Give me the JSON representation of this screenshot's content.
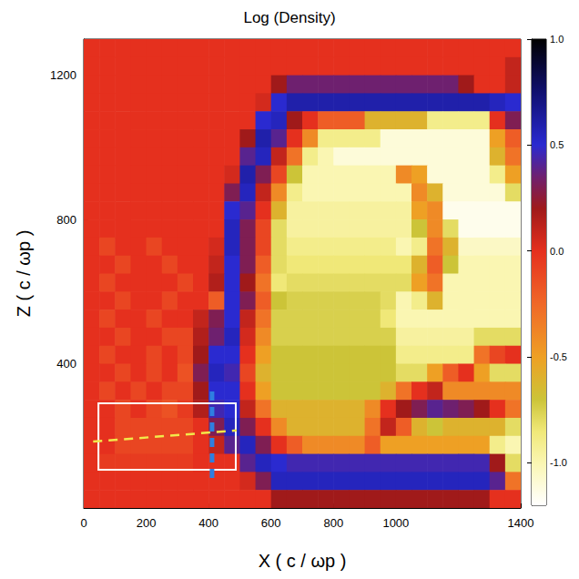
{
  "chart_data": {
    "type": "heatmap",
    "title": "Log (Density)",
    "x_label": "X ( c / ωp )",
    "y_label": "Z ( c / ωp )",
    "xlim": [
      0,
      1400
    ],
    "ylim": [
      0,
      1300
    ],
    "xticks": [
      0,
      200,
      400,
      600,
      800,
      1000,
      1400
    ],
    "yticks": [
      400,
      800,
      1200
    ],
    "x": [
      25,
      75,
      125,
      175,
      225,
      275,
      325,
      375,
      425,
      475,
      525,
      575,
      625,
      675,
      725,
      775,
      825,
      875,
      925,
      975,
      1025,
      1075,
      1125,
      1175,
      1225,
      1275,
      1325,
      1375
    ],
    "y": [
      1275,
      1225,
      1175,
      1125,
      1075,
      1025,
      975,
      925,
      875,
      825,
      775,
      725,
      675,
      625,
      575,
      525,
      475,
      425,
      375,
      325,
      275,
      225,
      175,
      125,
      75,
      25
    ],
    "values": [
      [
        0,
        0,
        0,
        0,
        0,
        0,
        0,
        0,
        0,
        0,
        0,
        0,
        0,
        0,
        0,
        0,
        0,
        0,
        0,
        0,
        0,
        0,
        0,
        0,
        0,
        0,
        0,
        0
      ],
      [
        0,
        0,
        0,
        0,
        0,
        0,
        0,
        0,
        0,
        0,
        0,
        0,
        0,
        0,
        0,
        0,
        0,
        0,
        0,
        0,
        0,
        0,
        0,
        0,
        0,
        0,
        0,
        0.1
      ],
      [
        0,
        0,
        0,
        0,
        0,
        0,
        0,
        0,
        0,
        0,
        0,
        0,
        0.2,
        0.35,
        0.35,
        0.35,
        0.35,
        0.35,
        0.35,
        0.35,
        0.35,
        0.35,
        0.35,
        0.35,
        0.2,
        0,
        0,
        0.1
      ],
      [
        0,
        0,
        0,
        0,
        0,
        0,
        0,
        0,
        0,
        0,
        0,
        0.05,
        0.5,
        0.6,
        0.6,
        0.6,
        0.6,
        0.6,
        0.6,
        0.6,
        0.6,
        0.6,
        0.6,
        0.6,
        0.6,
        0.6,
        0.55,
        0.5
      ],
      [
        0,
        0,
        0,
        0,
        0,
        0,
        0,
        0,
        0,
        0,
        0,
        0.5,
        0.55,
        0.2,
        0,
        -0.2,
        -0.2,
        -0.2,
        -0.6,
        -0.6,
        -0.6,
        -0.6,
        -0.9,
        -0.9,
        -0.9,
        -0.9,
        0,
        0.3
      ],
      [
        0,
        0,
        0,
        0,
        0,
        0,
        0,
        0,
        0,
        0,
        0.2,
        0.6,
        0.4,
        0,
        -0.4,
        -0.9,
        -0.9,
        -0.9,
        -0.9,
        -1.1,
        -1.1,
        -1.1,
        -1.1,
        -1.1,
        -1.1,
        -1.1,
        -0.5,
        -0.2
      ],
      [
        0,
        0,
        0,
        0,
        0,
        0,
        0,
        0,
        0,
        0,
        0.4,
        0.55,
        0.1,
        -0.3,
        -0.9,
        -1,
        -1.1,
        -1.1,
        -1.1,
        -1.1,
        -1.1,
        -1.1,
        -1.1,
        -1.1,
        -1.1,
        -1.1,
        -0.6,
        -0.3
      ],
      [
        0,
        0,
        0,
        0,
        0,
        0,
        0,
        0,
        0,
        0.05,
        0.6,
        0.3,
        -0.1,
        -0.7,
        -1,
        -1,
        -1,
        -1,
        -1,
        -1,
        -0.4,
        -0.5,
        -1.1,
        -1.1,
        -1.1,
        -1.1,
        -0.9,
        -0.5
      ],
      [
        0,
        0,
        0,
        0,
        0,
        0,
        0,
        0,
        0,
        0.3,
        0.55,
        0.1,
        -0.4,
        -0.9,
        -1,
        -1,
        -1,
        -1,
        -1,
        -1,
        -1,
        -0.4,
        -0.6,
        -1.1,
        -1.1,
        -1.1,
        -1.1,
        -0.8
      ],
      [
        0,
        0,
        0,
        0,
        0,
        0,
        0,
        0,
        0,
        0.5,
        0.4,
        0,
        -0.6,
        -0.95,
        -0.95,
        -0.95,
        -0.95,
        -0.95,
        -0.95,
        -0.95,
        -0.95,
        -0.5,
        -0.4,
        -1.15,
        -1.15,
        -1.15,
        -1.15,
        -1.15
      ],
      [
        0,
        0,
        0,
        0,
        0,
        0,
        0,
        0,
        0,
        0.55,
        0.3,
        -0.1,
        -0.8,
        -0.95,
        -0.95,
        -0.95,
        -0.95,
        -0.95,
        -0.95,
        -0.95,
        -0.95,
        -0.7,
        -0.4,
        -0.8,
        -1.15,
        -1.15,
        -1.15,
        -1.15
      ],
      [
        0,
        -0.1,
        0,
        0,
        -0.1,
        0,
        0,
        0,
        0.05,
        0.55,
        0.3,
        -0.1,
        -0.8,
        -0.9,
        -0.9,
        -0.9,
        -0.9,
        -0.9,
        -0.9,
        -0.9,
        -1,
        -0.9,
        -0.3,
        -0.6,
        -1.05,
        -1.05,
        -1.05,
        -1.05
      ],
      [
        0,
        0,
        -0.1,
        0,
        0,
        -0.1,
        0,
        0,
        0.1,
        0.5,
        0.3,
        -0.2,
        -0.8,
        -0.85,
        -0.85,
        -0.85,
        -0.85,
        -0.85,
        -0.85,
        -0.85,
        -0.85,
        -0.6,
        -0.2,
        -0.7,
        -1,
        -1,
        -1,
        -1
      ],
      [
        0,
        -0.1,
        0,
        0,
        0,
        0,
        -0.1,
        0,
        0.15,
        0.5,
        0.2,
        -0.3,
        -0.85,
        -0.8,
        -0.8,
        -0.8,
        -0.8,
        -0.8,
        -0.8,
        -0.8,
        -0.8,
        -0.5,
        -0.3,
        -1,
        -1,
        -1,
        -1,
        -1
      ],
      [
        0,
        0,
        -0.1,
        0,
        0,
        -0.1,
        0,
        0,
        -0.2,
        0.5,
        0.3,
        -0.2,
        -0.7,
        -0.75,
        -0.75,
        -0.75,
        -0.75,
        -0.75,
        -0.75,
        -0.8,
        -1,
        -0.9,
        -0.6,
        -1,
        -1,
        -1,
        -1,
        -1
      ],
      [
        0,
        -0.1,
        0,
        0,
        -0.1,
        0,
        0,
        0.1,
        0.3,
        0.5,
        0.1,
        -0.3,
        -0.75,
        -0.75,
        -0.75,
        -0.75,
        -0.75,
        -0.75,
        -0.75,
        -0.85,
        -1,
        -1,
        -1,
        -1,
        -1,
        -1,
        -1,
        -1
      ],
      [
        0,
        0,
        -0.1,
        0,
        0,
        -0.1,
        -0.1,
        0.15,
        0.35,
        0.55,
        0.05,
        -0.4,
        -0.75,
        -0.75,
        -0.75,
        -0.75,
        -0.75,
        -0.75,
        -0.75,
        -0.75,
        -0.95,
        -0.95,
        -0.95,
        -0.95,
        -0.95,
        -0.8,
        -0.8,
        -0.8
      ],
      [
        0,
        -0.1,
        0,
        0,
        -0.1,
        0,
        -0.1,
        0.2,
        0.5,
        0.5,
        0,
        -0.5,
        -0.7,
        -0.7,
        -0.7,
        -0.7,
        -0.7,
        -0.7,
        -0.7,
        -0.7,
        -0.9,
        -0.9,
        -0.9,
        -0.9,
        -0.9,
        -0.3,
        -0.1,
        0
      ],
      [
        0,
        0,
        -0.1,
        0,
        -0.1,
        0,
        -0.15,
        0.3,
        0.55,
        0.45,
        -0.1,
        -0.6,
        -0.7,
        -0.7,
        -0.7,
        -0.7,
        -0.7,
        -0.7,
        -0.7,
        -0.7,
        -0.8,
        -0.8,
        -0.5,
        -0.2,
        0,
        -0.5,
        -0.8,
        -0.8
      ],
      [
        0,
        -0.1,
        0,
        -0.1,
        0,
        -0.1,
        -0.1,
        0.2,
        0.5,
        0.5,
        0,
        -0.5,
        -0.7,
        -0.7,
        -0.7,
        -0.7,
        -0.7,
        -0.7,
        -0.7,
        -0.6,
        -0.3,
        0,
        0.1,
        -0.4,
        -0.4,
        -0.4,
        -0.4,
        -0.4
      ],
      [
        0,
        0,
        -0.1,
        0,
        -0.1,
        -0.15,
        -0.05,
        0.15,
        0.45,
        0.5,
        0.1,
        -0.3,
        -0.6,
        -0.6,
        -0.6,
        -0.6,
        -0.6,
        -0.6,
        -0.4,
        0,
        0.2,
        0.3,
        0.4,
        0.35,
        0.3,
        0.2,
        0,
        -0.3
      ],
      [
        0,
        0,
        -0.1,
        -0.1,
        -0.1,
        -0.1,
        -0.1,
        0,
        0.3,
        0.55,
        0.3,
        0,
        -0.4,
        -0.6,
        -0.6,
        -0.6,
        -0.6,
        -0.6,
        -0.3,
        0.1,
        -0.2,
        -0.6,
        -0.7,
        -0.6,
        -0.6,
        -0.6,
        -0.6,
        -0.8
      ],
      [
        0,
        0,
        -0.1,
        -0.1,
        -0.1,
        -0.1,
        -0.1,
        0,
        0.1,
        0.4,
        0.55,
        0.3,
        0,
        -0.2,
        -0.4,
        -0.4,
        -0.4,
        -0.4,
        -0.2,
        -0.5,
        -0.5,
        -0.5,
        -0.5,
        -0.5,
        -0.5,
        -0.5,
        -0.9,
        -1
      ],
      [
        0,
        -0.05,
        -0.05,
        -0.05,
        -0.05,
        -0.05,
        -0.05,
        0,
        0,
        0,
        0.4,
        0.55,
        0.5,
        0.45,
        0.45,
        0.45,
        0.45,
        0.45,
        0.45,
        0.45,
        0.45,
        0.45,
        0.45,
        0.45,
        0.45,
        0.45,
        0.2,
        -0.8
      ],
      [
        0,
        0,
        0,
        0,
        0,
        0,
        0,
        0,
        0,
        0,
        0.05,
        0.3,
        0.55,
        0.55,
        0.55,
        0.55,
        0.55,
        0.55,
        0.55,
        0.55,
        0.55,
        0.55,
        0.55,
        0.55,
        0.55,
        0.55,
        0.4,
        -0.3
      ],
      [
        0,
        0,
        0,
        0,
        0,
        0,
        0,
        0,
        0,
        0,
        0,
        0,
        0.2,
        0.2,
        0.2,
        0.2,
        0.2,
        0.2,
        0.2,
        0.2,
        0.2,
        0.2,
        0.2,
        0.2,
        0.2,
        0.2,
        0,
        0
      ]
    ],
    "colorbar": {
      "range": [
        -1.2,
        1.0
      ],
      "ticks": [
        {
          "value": 1.0,
          "label": "1.0"
        },
        0.5,
        {
          "value": 0,
          "label": "0.0"
        },
        -0.5,
        {
          "value": -1.0,
          "label": "-1.0"
        }
      ]
    },
    "annotations": [
      {
        "type": "rect",
        "x": [
          47,
          487
        ],
        "y": [
          106,
          290
        ],
        "color": "#ffffff",
        "line_style": "solid"
      },
      {
        "type": "line",
        "x": [
          30,
          490
        ],
        "y": [
          184,
          215
        ],
        "color": "#f2e84a",
        "line_style": "dashed"
      },
      {
        "type": "line",
        "x": [
          411,
          411
        ],
        "y": [
          83,
          328
        ],
        "color": "#2f7fe0",
        "line_style": "dashed"
      }
    ]
  }
}
